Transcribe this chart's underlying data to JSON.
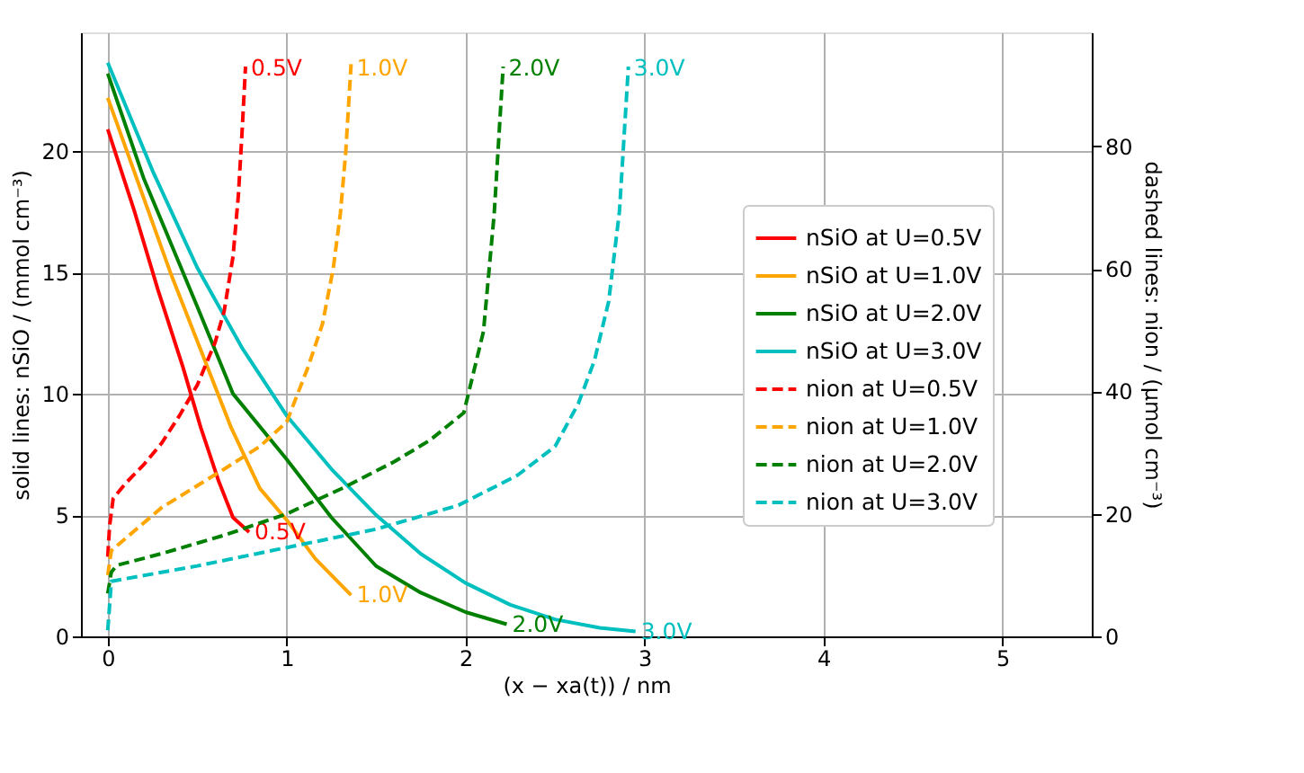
{
  "chart_data": {
    "type": "line",
    "xlabel": "(x − xa(t)) / nm",
    "ylabel": "solid lines: nSiO / (mmol cm⁻³)",
    "y2label": "dashed lines: nion / (μmol cm⁻³)",
    "xlim": [
      -0.15,
      5.5
    ],
    "xticks": [
      0,
      1,
      2,
      3,
      4,
      5
    ],
    "ylim": [
      0,
      24.9
    ],
    "yticks": [
      0,
      5,
      10,
      15,
      20
    ],
    "y2lim": [
      0,
      98.6
    ],
    "y2ticks": [
      0,
      20,
      40,
      60,
      80
    ],
    "grid": true,
    "legend": "right",
    "marker": "none",
    "series": [
      {
        "name": "nSiO at U=0.5V",
        "color": "#ff0000",
        "line_style": "solid",
        "x": [
          0,
          0.15,
          0.28,
          0.42,
          0.52,
          0.62,
          0.7,
          0.79
        ],
        "values": [
          20.9,
          17.5,
          14.3,
          11.1,
          8.6,
          6.4,
          4.9,
          4.3
        ]
      },
      {
        "name": "nSiO at U=1.0V",
        "color": "#ffa500",
        "line_style": "solid",
        "x": [
          0,
          0.18,
          0.35,
          0.52,
          0.69,
          0.85,
          1.0,
          1.16,
          1.36
        ],
        "values": [
          22.2,
          18.5,
          15.0,
          11.8,
          8.6,
          6.1,
          4.8,
          3.2,
          1.7
        ]
      },
      {
        "name": "nSiO at U=2.0V",
        "color": "#008000",
        "line_style": "solid",
        "x": [
          0,
          0.2,
          0.5,
          0.7,
          1.0,
          1.25,
          1.5,
          1.75,
          2.0,
          2.23
        ],
        "values": [
          23.2,
          18.9,
          13.6,
          10.0,
          7.3,
          4.9,
          2.9,
          1.8,
          1.0,
          0.5
        ]
      },
      {
        "name": "nSiO at U=3.0V",
        "color": "#00bfbf",
        "line_style": "solid",
        "x": [
          0,
          0.25,
          0.5,
          0.75,
          1.0,
          1.25,
          1.5,
          1.75,
          2.0,
          2.25,
          2.5,
          2.75,
          2.95
        ],
        "values": [
          23.65,
          19.2,
          15.2,
          11.9,
          9.1,
          6.9,
          5.0,
          3.4,
          2.2,
          1.3,
          0.7,
          0.35,
          0.2
        ]
      },
      {
        "name": "nion at U=0.5V",
        "color": "#ff0000",
        "line_style": "dashed",
        "axis": "y2",
        "x": [
          0,
          0.01,
          0.03,
          0.1,
          0.2,
          0.3,
          0.4,
          0.5,
          0.6,
          0.65,
          0.7,
          0.73,
          0.75,
          0.77
        ],
        "values": [
          13,
          18,
          22.5,
          25,
          28,
          31.5,
          36,
          41,
          48,
          53,
          62,
          72,
          82,
          93
        ]
      },
      {
        "name": "nion at U=1.0V",
        "color": "#ffa500",
        "line_style": "dashed",
        "axis": "y2",
        "x": [
          0,
          0.02,
          0.3,
          0.65,
          0.85,
          1.0,
          1.12,
          1.2,
          1.26,
          1.3,
          1.33,
          1.36
        ],
        "values": [
          10,
          14,
          21,
          27.3,
          31,
          35,
          44,
          51,
          60,
          69,
          79,
          93.4
        ]
      },
      {
        "name": "nion at U=2.0V",
        "color": "#008000",
        "line_style": "dashed",
        "axis": "y2",
        "x": [
          0,
          0.02,
          0.05,
          0.3,
          0.65,
          1.0,
          1.32,
          1.6,
          1.8,
          1.99,
          2.1,
          2.16,
          2.21
        ],
        "values": [
          7,
          10.5,
          11.6,
          13.5,
          16.5,
          20,
          24.3,
          28.5,
          32,
          36.5,
          49.8,
          69,
          93
        ]
      },
      {
        "name": "nion at U=3.0V",
        "color": "#00bfbf",
        "line_style": "dashed",
        "axis": "y2",
        "x": [
          0,
          0.02,
          0.5,
          1.0,
          1.5,
          1.96,
          2.29,
          2.5,
          2.63,
          2.72,
          2.8,
          2.86,
          2.91
        ],
        "values": [
          1,
          9,
          11.5,
          14.5,
          17.5,
          21.4,
          26.3,
          31,
          38,
          45,
          54.7,
          69.4,
          93
        ]
      }
    ],
    "annotations": [
      {
        "text": "0.5V",
        "x": 0.77,
        "y": 23.4
      },
      {
        "text": "1.0V",
        "x": 1.36,
        "y": 23.4
      },
      {
        "text": "2.0V",
        "x": 2.21,
        "y": 23.4
      },
      {
        "text": "3.0V",
        "x": 2.91,
        "y": 23.4
      },
      {
        "text": "0.5V",
        "x": 0.79,
        "y": 4.3
      },
      {
        "text": "1.0V",
        "x": 1.36,
        "y": 1.7
      },
      {
        "text": "2.0V",
        "x": 2.23,
        "y": 0.5
      },
      {
        "text": "3.0V",
        "x": 2.95,
        "y": 0.2
      }
    ]
  }
}
